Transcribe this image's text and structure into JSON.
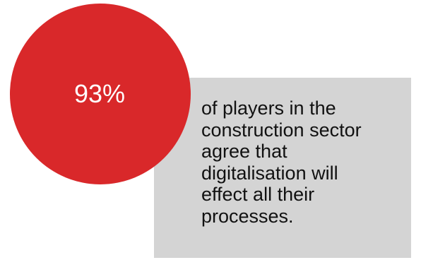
{
  "stat": {
    "value": "93%",
    "color": "#d9282a"
  },
  "caption": {
    "lines": [
      "of players in the",
      "construction sector",
      "agree that",
      "digitalisation will",
      "effect all their",
      "processes."
    ],
    "background": "#d4d4d4"
  }
}
